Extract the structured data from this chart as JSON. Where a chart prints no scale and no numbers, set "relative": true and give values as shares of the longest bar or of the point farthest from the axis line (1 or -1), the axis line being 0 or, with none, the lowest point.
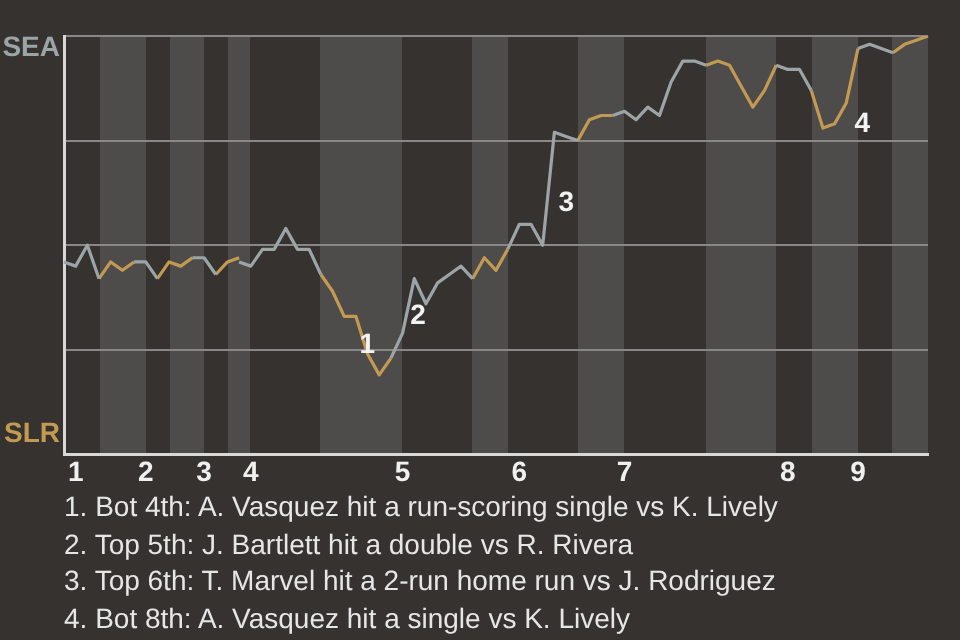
{
  "chart_data": {
    "type": "line",
    "relative": true,
    "categories": [
      null,
      "1",
      null,
      null,
      null,
      null,
      null,
      "2",
      null,
      null,
      null,
      null,
      "3",
      null,
      null,
      null,
      "4",
      null,
      null,
      null,
      null,
      null,
      null,
      null,
      null,
      null,
      null,
      null,
      null,
      "5",
      null,
      null,
      null,
      null,
      null,
      null,
      null,
      null,
      null,
      "6",
      null,
      null,
      null,
      null,
      null,
      null,
      null,
      null,
      "7",
      null,
      null,
      null,
      null,
      null,
      null,
      null,
      null,
      null,
      null,
      null,
      null,
      null,
      "8",
      null,
      null,
      null,
      null,
      null,
      "9",
      null,
      null,
      null,
      null,
      null,
      null
    ],
    "series": [
      {
        "color": "#9ba4a6",
        "values": [
          0.46,
          0.45,
          0.5,
          0.42,
          null,
          null,
          0.46,
          0.46,
          0.42,
          null,
          null,
          0.47,
          0.47,
          0.43,
          null,
          0.46,
          0.45,
          0.49,
          0.49,
          0.54,
          0.49,
          0.49,
          0.43,
          null,
          null,
          null,
          null,
          null,
          0.23,
          0.29,
          0.42,
          0.36,
          0.41,
          0.43,
          0.45,
          0.42,
          null,
          null,
          0.49,
          0.55,
          0.55,
          0.5,
          0.77,
          0.76,
          0.75,
          null,
          null,
          0.81,
          0.82,
          0.8,
          0.83,
          0.81,
          0.89,
          0.94,
          0.94,
          0.93,
          null,
          null,
          null,
          null,
          null,
          0.93,
          0.92,
          0.92,
          0.87,
          null,
          null,
          null,
          0.97,
          0.98,
          0.97,
          0.96,
          null,
          null,
          null
        ]
      },
      {
        "color": "#c29a52",
        "values": [
          null,
          null,
          null,
          0.42,
          0.46,
          0.44,
          0.46,
          null,
          0.42,
          0.46,
          0.45,
          0.47,
          null,
          0.43,
          0.46,
          0.47,
          null,
          null,
          null,
          null,
          null,
          null,
          0.43,
          0.39,
          0.33,
          0.33,
          0.24,
          0.19,
          0.23,
          null,
          null,
          null,
          null,
          null,
          null,
          0.42,
          0.47,
          0.44,
          0.49,
          null,
          null,
          null,
          null,
          null,
          0.75,
          0.8,
          0.81,
          0.81,
          null,
          null,
          null,
          null,
          null,
          null,
          null,
          0.93,
          0.94,
          0.93,
          0.88,
          0.83,
          0.87,
          0.93,
          null,
          null,
          0.87,
          0.78,
          0.79,
          0.84,
          0.97,
          null,
          null,
          0.96,
          0.98,
          0.99,
          1
        ]
      }
    ],
    "grid": "y",
    "marker": "none",
    "annotations": [
      "SEA",
      "SLR",
      "1",
      "2",
      "3",
      "4",
      "1. Bot 4th: A. Vasquez hit a run-scoring single vs K. Lively",
      "2. Top 5th: J. Bartlett hit a double vs R. Rivera",
      "3. Top 6th: T. Marvel hit a 2-run home run vs J. Rodriguez",
      "4. Bot 8th: A. Vasquez hit a single vs K. Lively"
    ]
  }
}
